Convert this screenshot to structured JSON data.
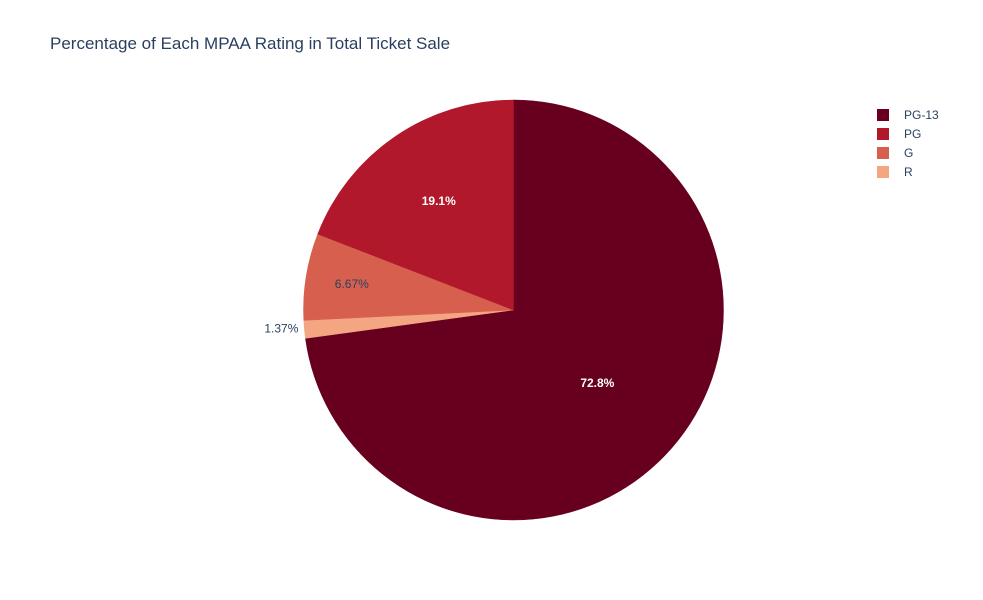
{
  "chart_data": {
    "type": "pie",
    "title": "Percentage of Each MPAA Rating in Total Ticket Sale",
    "slices": [
      {
        "label": "PG-13",
        "percent": 72.8,
        "percent_label": "72.8%",
        "color": "#67001f",
        "label_position": "inside",
        "label_color": "#ffffff",
        "label_bold": true
      },
      {
        "label": "R",
        "percent": 1.37,
        "percent_label": "1.37%",
        "color": "#f4a582",
        "label_position": "outside",
        "label_color": "#2a3f5f",
        "label_bold": false
      },
      {
        "label": "G",
        "percent": 6.67,
        "percent_label": "6.67%",
        "color": "#d6604d",
        "label_position": "inside",
        "label_color": "#2a3f5f",
        "label_bold": false
      },
      {
        "label": "PG",
        "percent": 19.1,
        "percent_label": "19.1%",
        "color": "#b2182b",
        "label_position": "inside",
        "label_color": "#ffffff",
        "label_bold": true
      }
    ],
    "direction": "clockwise",
    "start": "top",
    "legend": {
      "position": "top-right",
      "entries": [
        {
          "label": "PG-13",
          "color": "#67001f"
        },
        {
          "label": "PG",
          "color": "#b2182b"
        },
        {
          "label": "G",
          "color": "#d6604d"
        },
        {
          "label": "R",
          "color": "#f4a582"
        }
      ]
    }
  }
}
